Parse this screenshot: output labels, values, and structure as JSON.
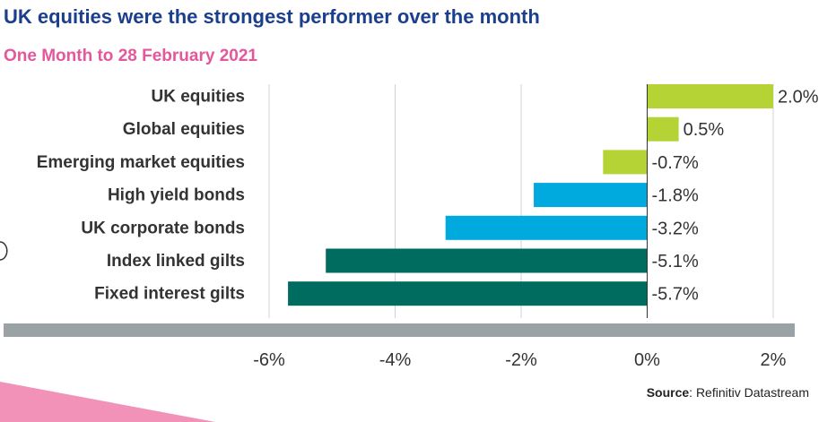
{
  "title": "UK equities were the strongest performer over the month",
  "subtitle": "One Month to 28 February 2021",
  "source": {
    "label": "Source",
    "text": ": Refinitiv Datastream"
  },
  "colors": {
    "title": "#1b3f8c",
    "subtitle": "#e5579b",
    "equities": "#b5d334",
    "bonds": "#00a9de",
    "gilts": "#006b5f",
    "axis_band": "#9aa2a6",
    "gridline": "#d0d3d5",
    "accent_shape": "#f292b8"
  },
  "chart_data": {
    "type": "bar",
    "orientation": "horizontal",
    "title": "UK equities were the strongest performer over the month",
    "subtitle": "One Month to 28 February 2021",
    "categories": [
      "UK equities",
      "Global equities",
      "Emerging market equities",
      "High yield bonds",
      "UK corporate bonds",
      "Index linked gilts",
      "Fixed interest gilts"
    ],
    "values": [
      2.0,
      0.5,
      -0.7,
      -1.8,
      -3.2,
      -5.1,
      -5.7
    ],
    "value_labels": [
      "2.0%",
      "0.5%",
      "-0.7%",
      "-1.8%",
      "-3.2%",
      "-5.1%",
      "-5.7%"
    ],
    "bar_colors": [
      "#b5d334",
      "#b5d334",
      "#b5d334",
      "#00a9de",
      "#00a9de",
      "#006b5f",
      "#006b5f"
    ],
    "xlim": [
      -6,
      2
    ],
    "x_ticks": [
      -6,
      -4,
      -2,
      0,
      2
    ],
    "x_tick_labels": [
      "-6%",
      "-4%",
      "-2%",
      "0%",
      "2%"
    ],
    "xlabel": "",
    "ylabel": "",
    "grid": true,
    "legend": "none"
  }
}
